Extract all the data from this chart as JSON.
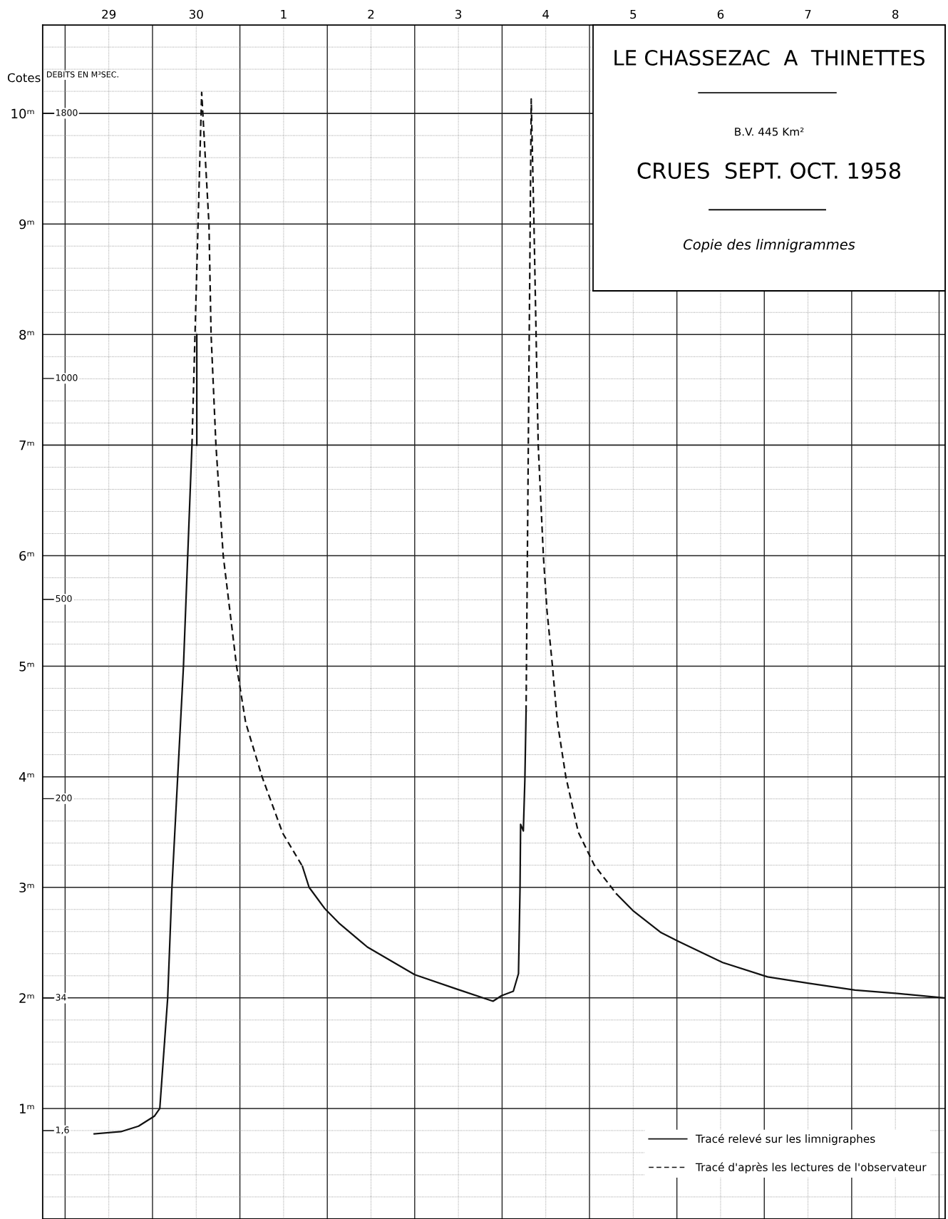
{
  "chart_data": {
    "type": "line",
    "title": "LE CHASSEZAC  A  THINETTES",
    "subtitle": "CRUES  SEPT. OCT. 1958",
    "annotations": [
      "B.V. 445 Km²",
      "Copie des limnigrammes",
      "DEBITS EN M³SEC.",
      "1,6",
      "34",
      "200",
      "500",
      "1000",
      "1800"
    ],
    "ylabel": "Cotes",
    "xlim": [
      "1958-09-28T17:50",
      "1958-10-09T01:40"
    ],
    "xticks": [
      {
        "value": "1958-09-29T12:00",
        "label": "29"
      },
      {
        "value": "1958-09-30T12:00",
        "label": "30"
      },
      {
        "value": "1958-10-01T12:00",
        "label": "1"
      },
      {
        "value": "1958-10-02T12:00",
        "label": "2"
      },
      {
        "value": "1958-10-03T12:00",
        "label": "3"
      },
      {
        "value": "1958-10-04T12:00",
        "label": "4"
      },
      {
        "value": "1958-10-05T12:00",
        "label": "5"
      },
      {
        "value": "1958-10-06T12:00",
        "label": "6"
      },
      {
        "value": "1958-10-07T12:00",
        "label": "7"
      },
      {
        "value": "1958-10-08T12:00",
        "label": "8"
      }
    ],
    "ylim": [
      0,
      10.8
    ],
    "yticks": [
      {
        "value": 1,
        "label": "1ᵐ"
      },
      {
        "value": 2,
        "label": "2ᵐ"
      },
      {
        "value": 3,
        "label": "3ᵐ"
      },
      {
        "value": 4,
        "label": "4ᵐ"
      },
      {
        "value": 5,
        "label": "5ᵐ"
      },
      {
        "value": 6,
        "label": "6ᵐ"
      },
      {
        "value": 7,
        "label": "7ᵐ"
      },
      {
        "value": 8,
        "label": "8ᵐ"
      },
      {
        "value": 9,
        "label": "9ᵐ"
      },
      {
        "value": 10,
        "label": "10ᵐ"
      }
    ],
    "grid": true,
    "legend": "bottom right",
    "marker": "none",
    "series": [
      {
        "name": "Tracé relevé sur les limnigraphes",
        "color": "#111111",
        "line_style": "solid",
        "x": [
          "1958-09-29T08:00",
          "1958-09-29T15:20",
          "1958-09-29T20:10",
          "1958-09-30T00:30",
          "1958-09-30T02:00",
          "1958-09-30T04:10",
          "1958-09-30T05:20",
          "1958-09-30T06:55",
          "1958-09-30T08:30",
          "1958-09-30T09:40",
          "1958-09-30T10:50",
          "1958-09-30T11:30",
          "1958-09-30T12:10",
          "1958-09-30T12:10",
          "1958-10-01T12:00",
          "1958-10-01T17:10",
          "1958-10-01T19:00",
          "1958-10-01T23:15",
          "1958-10-02T03:25",
          "1958-10-02T11:00",
          "1958-10-03T00:00",
          "1958-10-03T11:30",
          "1958-10-03T21:30",
          "1958-10-03T23:50",
          "1958-10-04T03:05",
          "1958-10-04T04:30",
          "1958-10-04T04:55",
          "1958-10-04T05:05",
          "1958-10-04T05:50",
          "1958-10-04T06:15",
          "1958-10-04T06:35",
          "1958-10-05T00:00",
          "1958-10-05T07:25",
          "1958-10-05T11:55",
          "1958-10-05T19:40",
          "1958-10-06T00:30",
          "1958-10-06T12:35",
          "1958-10-07T00:55",
          "1958-10-07T12:35",
          "1958-10-08T00:55",
          "1958-10-08T12:35",
          "1958-10-09T01:15"
        ],
        "values": [
          0.77,
          0.79,
          0.84,
          0.93,
          1.0,
          2.0,
          3.0,
          4.0,
          5.0,
          6.0,
          7.0,
          null,
          7.0,
          8.0,
          null,
          3.19,
          3.0,
          2.81,
          2.67,
          2.46,
          2.21,
          2.08,
          1.97,
          2.02,
          2.06,
          2.22,
          2.98,
          3.57,
          3.51,
          3.97,
          4.59,
          null,
          2.94,
          2.79,
          2.59,
          2.51,
          2.32,
          2.19,
          2.13,
          2.07,
          2.04,
          2.0
        ]
      },
      {
        "name": "Tracé d'après les lectures de l'observateur",
        "color": "#111111",
        "line_style": "dashed",
        "x": [
          "1958-09-30T10:50",
          "1958-09-30T13:30",
          "1958-09-30T15:30",
          "1958-09-30T16:05",
          "1958-09-30T17:25",
          "1958-09-30T19:25",
          "1958-09-30T23:05",
          "1958-10-01T01:35",
          "1958-10-01T06:05",
          "1958-10-01T11:45",
          "1958-10-01T17:10",
          "1958-10-03T00:00",
          "1958-10-04T06:35",
          "1958-10-04T08:00",
          "1958-10-04T08:45",
          "1958-10-04T09:20",
          "1958-10-04T09:55",
          "1958-10-04T11:20",
          "1958-10-04T12:20",
          "1958-10-04T13:50",
          "1958-10-04T15:10",
          "1958-10-04T17:30",
          "1958-10-04T20:55",
          "1958-10-05T01:20",
          "1958-10-05T07:25"
        ],
        "values": [
          7.0,
          10.19,
          9.0,
          8.0,
          7.0,
          6.0,
          5.0,
          4.49,
          4.0,
          3.49,
          3.19,
          null,
          4.59,
          10.13,
          9.0,
          8.0,
          7.0,
          6.0,
          5.5,
          5.0,
          4.5,
          4.0,
          3.5,
          3.2,
          2.94
        ]
      }
    ]
  }
}
